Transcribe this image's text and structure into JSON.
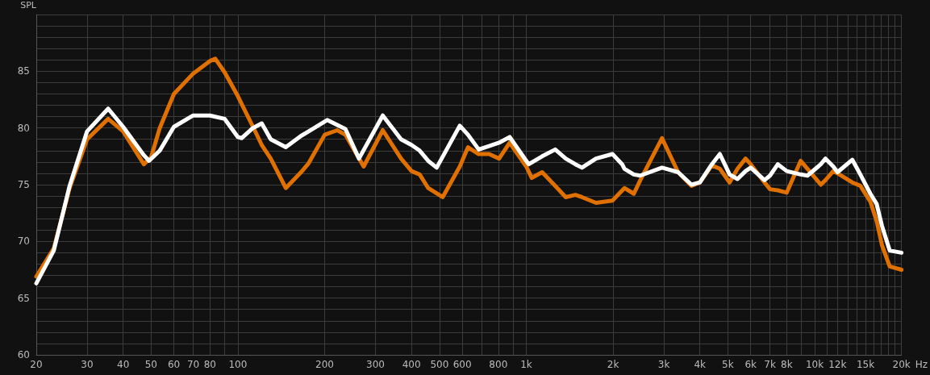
{
  "chart_data": {
    "type": "line",
    "ylabel": "SPL",
    "xlabel": "Hz",
    "log": "x",
    "grid": true,
    "marker": "none",
    "line_style": "solid",
    "xlim": [
      20,
      20000
    ],
    "ylim": [
      60,
      90
    ],
    "xticks": [
      20,
      30,
      40,
      50,
      60,
      70,
      80,
      {
        "value": 90,
        "label": null
      },
      100,
      200,
      300,
      400,
      500,
      600,
      {
        "value": 700,
        "label": null
      },
      800,
      {
        "value": 900,
        "label": null
      },
      {
        "value": 1000,
        "label": "1k"
      },
      {
        "value": 2000,
        "label": "2k"
      },
      {
        "value": 3000,
        "label": "3k"
      },
      {
        "value": 4000,
        "label": "4k"
      },
      {
        "value": 5000,
        "label": "5k"
      },
      {
        "value": 6000,
        "label": "6k"
      },
      {
        "value": 7000,
        "label": "7k"
      },
      {
        "value": 8000,
        "label": "8k"
      },
      {
        "value": 9000,
        "label": null
      },
      {
        "value": 10000,
        "label": "10k"
      },
      {
        "value": 11000,
        "label": null
      },
      {
        "value": 12000,
        "label": "12k"
      },
      {
        "value": 13000,
        "label": null
      },
      {
        "value": 14000,
        "label": null
      },
      {
        "value": 15000,
        "label": "15k"
      },
      {
        "value": 16000,
        "label": null
      },
      {
        "value": 17000,
        "label": null
      },
      {
        "value": 18000,
        "label": null
      },
      {
        "value": 19000,
        "label": null
      },
      {
        "value": 20000,
        "label": "20k"
      }
    ],
    "yticks": [
      60,
      {
        "value": 61,
        "label": null
      },
      {
        "value": 62,
        "label": null
      },
      {
        "value": 63,
        "label": null
      },
      {
        "value": 64,
        "label": null
      },
      65,
      {
        "value": 66,
        "label": null
      },
      {
        "value": 67,
        "label": null
      },
      {
        "value": 68,
        "label": null
      },
      {
        "value": 69,
        "label": null
      },
      70,
      {
        "value": 71,
        "label": null
      },
      {
        "value": 72,
        "label": null
      },
      {
        "value": 73,
        "label": null
      },
      {
        "value": 74,
        "label": null
      },
      75,
      {
        "value": 76,
        "label": null
      },
      {
        "value": 77,
        "label": null
      },
      {
        "value": 78,
        "label": null
      },
      {
        "value": 79,
        "label": null
      },
      80,
      {
        "value": 81,
        "label": null
      },
      {
        "value": 82,
        "label": null
      },
      {
        "value": 83,
        "label": null
      },
      {
        "value": 84,
        "label": null
      },
      85,
      {
        "value": 86,
        "label": null
      },
      {
        "value": 87,
        "label": null
      },
      {
        "value": 88,
        "label": null
      },
      {
        "value": 89,
        "label": null
      },
      {
        "value": 90,
        "label": null
      }
    ],
    "series": [
      {
        "color": "#e07000",
        "x": [
          20,
          23,
          26.1,
          30,
          35.5,
          40,
          47.2,
          50,
          53.6,
          60,
          70,
          80,
          83.5,
          90,
          100,
          112.8,
          121,
          130,
          146.6,
          165.6,
          176,
          200,
          221,
          236,
          273,
          318,
          368,
          400,
          427,
          457,
          513,
          588,
          628,
          684,
          743,
          805,
          876,
          1000,
          1045,
          1135,
          1260,
          1370,
          1480,
          1560,
          1745,
          1990,
          2190,
          2360,
          2485,
          2955,
          3360,
          3740,
          4000,
          4400,
          4690,
          5070,
          5400,
          5760,
          6000,
          6700,
          7000,
          7450,
          8000,
          8940,
          10500,
          10900,
          11600,
          12000,
          13500,
          14400,
          15600,
          16400,
          17100,
          18200,
          20000
        ],
        "values": [
          66.9,
          69.4,
          74.7,
          79.0,
          80.8,
          79.7,
          76.8,
          77.4,
          80.0,
          83.0,
          84.8,
          85.9,
          86.1,
          84.9,
          82.8,
          80.1,
          78.5,
          77.3,
          74.7,
          76.1,
          76.9,
          79.4,
          79.8,
          79.4,
          76.6,
          79.8,
          77.3,
          76.2,
          75.9,
          74.7,
          73.9,
          76.6,
          78.3,
          77.7,
          77.7,
          77.3,
          78.7,
          76.6,
          75.6,
          76.1,
          74.9,
          73.9,
          74.1,
          73.9,
          73.4,
          73.6,
          74.7,
          74.2,
          75.4,
          79.1,
          76.1,
          74.9,
          75.2,
          76.7,
          76.4,
          75.2,
          76.4,
          77.3,
          76.8,
          75.2,
          74.6,
          74.5,
          74.3,
          77.1,
          75.0,
          75.4,
          76.2,
          76.0,
          75.2,
          74.9,
          73.5,
          71.8,
          69.7,
          67.8,
          67.5
        ]
      },
      {
        "color": "#ffffff",
        "x": [
          20,
          23,
          26.1,
          30,
          35.5,
          40,
          47.2,
          49.2,
          53.6,
          60,
          70,
          80,
          90,
          100,
          103,
          112.8,
          121,
          130,
          146.6,
          165.6,
          176,
          204,
          236,
          263,
          318,
          368,
          400,
          427,
          457,
          489,
          588,
          628,
          684,
          743,
          805,
          876,
          1000,
          1020,
          1135,
          1260,
          1370,
          1480,
          1560,
          1745,
          1990,
          2150,
          2190,
          2360,
          2485,
          2955,
          3360,
          3740,
          4000,
          4400,
          4690,
          5070,
          5400,
          5760,
          6000,
          6700,
          7000,
          7450,
          8000,
          8940,
          9440,
          10500,
          10900,
          11600,
          12000,
          13500,
          14400,
          15600,
          16400,
          17100,
          18200,
          20000
        ],
        "values": [
          66.3,
          69.2,
          74.9,
          79.7,
          81.7,
          80.1,
          77.6,
          77.1,
          78.0,
          80.1,
          81.1,
          81.1,
          80.8,
          79.2,
          79.1,
          80.0,
          80.4,
          79.0,
          78.3,
          79.3,
          79.7,
          80.7,
          79.9,
          77.3,
          81.1,
          79.0,
          78.5,
          78.0,
          77.1,
          76.5,
          80.2,
          79.4,
          78.1,
          78.4,
          78.7,
          79.2,
          77.1,
          76.8,
          77.5,
          78.1,
          77.3,
          76.8,
          76.5,
          77.3,
          77.7,
          76.8,
          76.4,
          75.9,
          75.8,
          76.5,
          76.1,
          75.0,
          75.2,
          76.8,
          77.7,
          75.9,
          75.5,
          76.2,
          76.5,
          75.4,
          75.8,
          76.8,
          76.2,
          75.9,
          75.8,
          76.8,
          77.3,
          76.6,
          76.1,
          77.2,
          75.9,
          74.2,
          73.3,
          71.4,
          69.2,
          69.0
        ]
      }
    ]
  }
}
